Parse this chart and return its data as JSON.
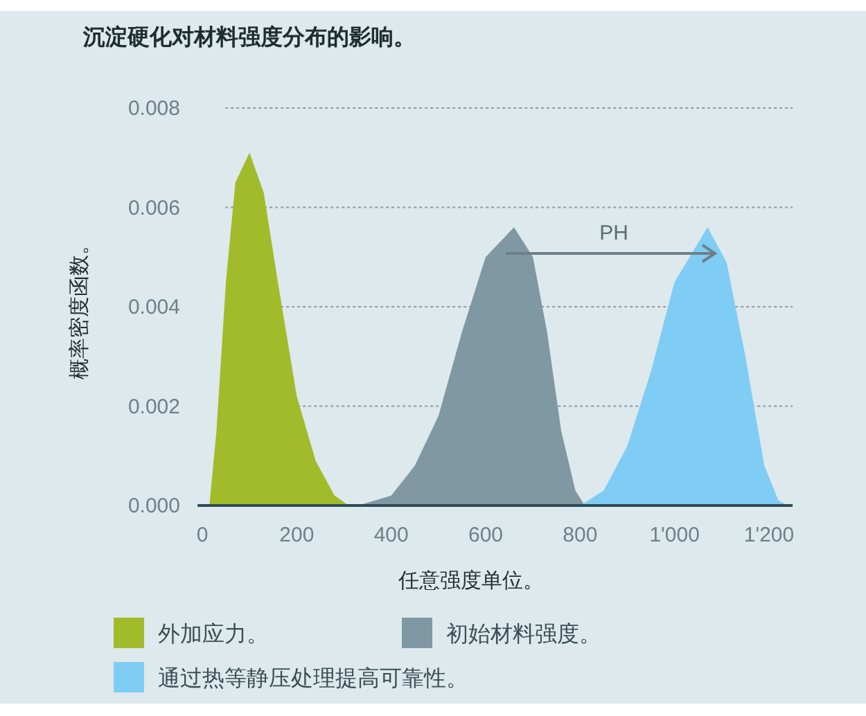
{
  "chart_data": {
    "type": "area",
    "title": "沉淀硬化对材料强度分布的影响。",
    "xlabel": "任意强度单位。",
    "ylabel": "概率密度函数。",
    "xlim": [
      -10,
      1250
    ],
    "ylim": [
      0,
      0.008
    ],
    "xticks": [
      0,
      200,
      400,
      600,
      800,
      {
        "value": 1000,
        "label": "1'000"
      },
      {
        "value": 1200,
        "label": "1'200"
      }
    ],
    "yticks": [
      {
        "value": 0,
        "label": "0.000"
      },
      {
        "value": 0.002,
        "label": "0.002"
      },
      {
        "value": 0.004,
        "label": "0.004"
      },
      {
        "value": 0.006,
        "label": "0.006"
      },
      {
        "value": 0.008,
        "label": "0.008"
      }
    ],
    "grid": "y",
    "legend": "bottom",
    "annotations": [
      "PH"
    ],
    "series": [
      {
        "name": "外加应力。",
        "color": "#a2bb2a",
        "x": [
          15,
          30,
          50,
          70,
          100,
          130,
          160,
          200,
          240,
          280,
          310
        ],
        "values": [
          0,
          0.0015,
          0.0045,
          0.0065,
          0.0071,
          0.0063,
          0.0045,
          0.0022,
          0.0009,
          0.0002,
          0
        ]
      },
      {
        "name": "初始材料强度。",
        "color": "#7f98a3",
        "x": [
          330,
          400,
          450,
          500,
          550,
          600,
          660,
          700,
          730,
          760,
          790,
          810
        ],
        "values": [
          0,
          0.0002,
          0.0008,
          0.0018,
          0.0035,
          0.005,
          0.0056,
          0.005,
          0.0035,
          0.0015,
          0.0003,
          0
        ]
      },
      {
        "name": "通过热等静压处理提高可靠性。",
        "color": "#7fcdf5",
        "x": [
          800,
          850,
          900,
          950,
          1000,
          1070,
          1110,
          1150,
          1190,
          1220,
          1240
        ],
        "values": [
          0,
          0.0003,
          0.0012,
          0.0027,
          0.0045,
          0.0056,
          0.0049,
          0.003,
          0.0008,
          0.0001,
          0
        ]
      }
    ]
  }
}
